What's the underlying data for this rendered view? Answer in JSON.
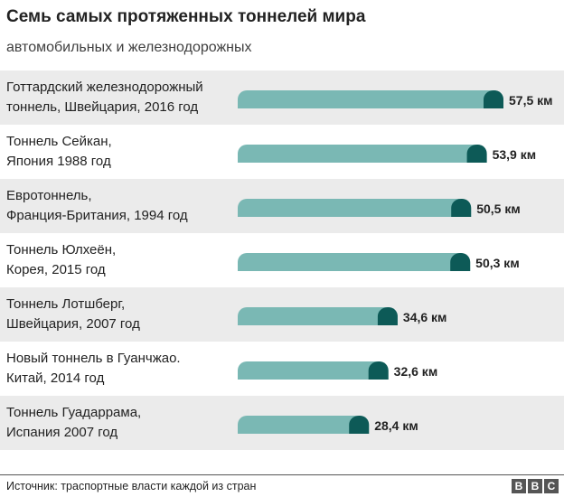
{
  "header": {
    "title": "Семь самых протяженных тоннелей мира",
    "subtitle": "автомобильных и железнодорожных"
  },
  "footer": {
    "source": "Источник: траспортные власти каждой из стран",
    "logo": [
      "B",
      "B",
      "C"
    ]
  },
  "colors": {
    "bar_fill": "#7ab8b4",
    "bar_end": "#0d5a57",
    "row_band": "#ebebeb",
    "row_plain": "#ffffff"
  },
  "chart_data": {
    "type": "bar",
    "orientation": "horizontal",
    "unit": "км",
    "xlim": [
      0,
      57.5
    ],
    "categories": [
      [
        "Готтардский железнодорожный",
        "тоннель, Швейцария, 2016 год"
      ],
      [
        "Тоннель Сейкан,",
        "Япония 1988 год"
      ],
      [
        "Евротоннель,",
        "Франция-Британия, 1994 год"
      ],
      [
        "Тоннель Юлхеён,",
        "Корея, 2015 год"
      ],
      [
        "Тоннель Лотшберг,",
        "Швейцария, 2007 год"
      ],
      [
        "Новый тоннель в Гуанчжао.",
        "Китай, 2014 год"
      ],
      [
        "Тоннель Гуадаррама,",
        "Испания 2007 год"
      ]
    ],
    "values": [
      57.5,
      53.9,
      50.5,
      50.3,
      34.6,
      32.6,
      28.4
    ],
    "value_labels": [
      "57,5 км",
      "53,9 км",
      "50,5 км",
      "50,3 км",
      "34,6 км",
      "32,6 км",
      "28,4 км"
    ]
  }
}
